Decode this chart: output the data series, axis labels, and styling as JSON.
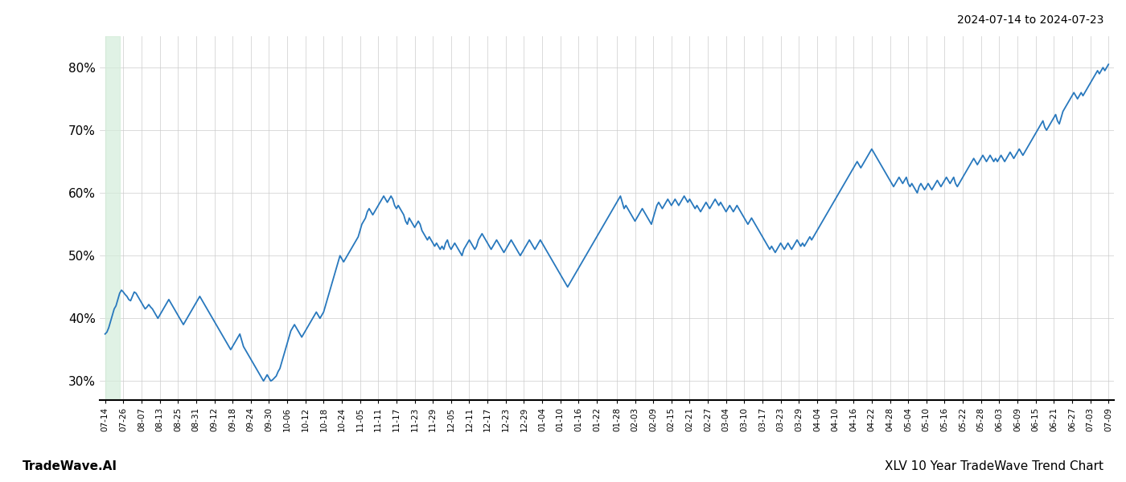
{
  "title_top_right": "2024-07-14 to 2024-07-23",
  "title_bottom_left": "TradeWave.AI",
  "title_bottom_right": "XLV 10 Year TradeWave Trend Chart",
  "line_color": "#2878bd",
  "line_width": 1.3,
  "highlight_color": "#d4edda",
  "highlight_alpha": 0.7,
  "highlight_xstart": 0,
  "highlight_xend": 8,
  "background_color": "#ffffff",
  "grid_color": "#cccccc",
  "ylim": [
    27,
    85
  ],
  "yticks": [
    30,
    40,
    50,
    60,
    70,
    80
  ],
  "x_labels": [
    "07-14",
    "07-26",
    "08-07",
    "08-13",
    "08-25",
    "08-31",
    "09-12",
    "09-18",
    "09-24",
    "09-30",
    "10-06",
    "10-12",
    "10-18",
    "10-24",
    "11-05",
    "11-11",
    "11-17",
    "11-23",
    "11-29",
    "12-05",
    "12-11",
    "12-17",
    "12-23",
    "12-29",
    "01-04",
    "01-10",
    "01-16",
    "01-22",
    "01-28",
    "02-03",
    "02-09",
    "02-15",
    "02-21",
    "02-27",
    "03-04",
    "03-10",
    "03-17",
    "03-23",
    "03-29",
    "04-04",
    "04-10",
    "04-16",
    "04-22",
    "04-28",
    "05-04",
    "05-10",
    "05-16",
    "05-22",
    "05-28",
    "06-03",
    "06-09",
    "06-15",
    "06-21",
    "06-27",
    "07-03",
    "07-09"
  ],
  "y_values": [
    37.5,
    37.8,
    38.5,
    39.5,
    40.5,
    41.5,
    42.0,
    43.0,
    44.0,
    44.5,
    44.2,
    43.8,
    43.5,
    43.0,
    42.8,
    43.5,
    44.2,
    44.0,
    43.5,
    43.0,
    42.5,
    42.0,
    41.5,
    41.8,
    42.2,
    41.8,
    41.5,
    41.0,
    40.5,
    40.0,
    40.5,
    41.0,
    41.5,
    42.0,
    42.5,
    43.0,
    42.5,
    42.0,
    41.5,
    41.0,
    40.5,
    40.0,
    39.5,
    39.0,
    39.5,
    40.0,
    40.5,
    41.0,
    41.5,
    42.0,
    42.5,
    43.0,
    43.5,
    43.0,
    42.5,
    42.0,
    41.5,
    41.0,
    40.5,
    40.0,
    39.5,
    39.0,
    38.5,
    38.0,
    37.5,
    37.0,
    36.5,
    36.0,
    35.5,
    35.0,
    35.5,
    36.0,
    36.5,
    37.0,
    37.5,
    36.5,
    35.5,
    35.0,
    34.5,
    34.0,
    33.5,
    33.0,
    32.5,
    32.0,
    31.5,
    31.0,
    30.5,
    30.0,
    30.5,
    31.0,
    30.5,
    30.0,
    30.2,
    30.5,
    30.8,
    31.5,
    32.0,
    33.0,
    34.0,
    35.0,
    36.0,
    37.0,
    38.0,
    38.5,
    39.0,
    38.5,
    38.0,
    37.5,
    37.0,
    37.5,
    38.0,
    38.5,
    39.0,
    39.5,
    40.0,
    40.5,
    41.0,
    40.5,
    40.0,
    40.5,
    41.0,
    42.0,
    43.0,
    44.0,
    45.0,
    46.0,
    47.0,
    48.0,
    49.0,
    50.0,
    49.5,
    49.0,
    49.5,
    50.0,
    50.5,
    51.0,
    51.5,
    52.0,
    52.5,
    53.0,
    54.0,
    55.0,
    55.5,
    56.0,
    57.0,
    57.5,
    57.0,
    56.5,
    57.0,
    57.5,
    58.0,
    58.5,
    59.0,
    59.5,
    59.0,
    58.5,
    59.0,
    59.5,
    59.0,
    58.0,
    57.5,
    58.0,
    57.5,
    57.0,
    56.5,
    55.5,
    55.0,
    56.0,
    55.5,
    55.0,
    54.5,
    55.0,
    55.5,
    55.0,
    54.0,
    53.5,
    53.0,
    52.5,
    53.0,
    52.5,
    52.0,
    51.5,
    52.0,
    51.5,
    51.0,
    51.5,
    51.0,
    52.0,
    52.5,
    51.5,
    51.0,
    51.5,
    52.0,
    51.5,
    51.0,
    50.5,
    50.0,
    51.0,
    51.5,
    52.0,
    52.5,
    52.0,
    51.5,
    51.0,
    51.5,
    52.5,
    53.0,
    53.5,
    53.0,
    52.5,
    52.0,
    51.5,
    51.0,
    51.5,
    52.0,
    52.5,
    52.0,
    51.5,
    51.0,
    50.5,
    51.0,
    51.5,
    52.0,
    52.5,
    52.0,
    51.5,
    51.0,
    50.5,
    50.0,
    50.5,
    51.0,
    51.5,
    52.0,
    52.5,
    52.0,
    51.5,
    51.0,
    51.5,
    52.0,
    52.5,
    52.0,
    51.5,
    51.0,
    50.5,
    50.0,
    49.5,
    49.0,
    48.5,
    48.0,
    47.5,
    47.0,
    46.5,
    46.0,
    45.5,
    45.0,
    45.5,
    46.0,
    46.5,
    47.0,
    47.5,
    48.0,
    48.5,
    49.0,
    49.5,
    50.0,
    50.5,
    51.0,
    51.5,
    52.0,
    52.5,
    53.0,
    53.5,
    54.0,
    54.5,
    55.0,
    55.5,
    56.0,
    56.5,
    57.0,
    57.5,
    58.0,
    58.5,
    59.0,
    59.5,
    58.5,
    57.5,
    58.0,
    57.5,
    57.0,
    56.5,
    56.0,
    55.5,
    56.0,
    56.5,
    57.0,
    57.5,
    57.0,
    56.5,
    56.0,
    55.5,
    55.0,
    56.0,
    57.0,
    58.0,
    58.5,
    58.0,
    57.5,
    58.0,
    58.5,
    59.0,
    58.5,
    58.0,
    58.5,
    59.0,
    58.5,
    58.0,
    58.5,
    59.0,
    59.5,
    59.0,
    58.5,
    59.0,
    58.5,
    58.0,
    57.5,
    58.0,
    57.5,
    57.0,
    57.5,
    58.0,
    58.5,
    58.0,
    57.5,
    58.0,
    58.5,
    59.0,
    58.5,
    58.0,
    58.5,
    58.0,
    57.5,
    57.0,
    57.5,
    58.0,
    57.5,
    57.0,
    57.5,
    58.0,
    57.5,
    57.0,
    56.5,
    56.0,
    55.5,
    55.0,
    55.5,
    56.0,
    55.5,
    55.0,
    54.5,
    54.0,
    53.5,
    53.0,
    52.5,
    52.0,
    51.5,
    51.0,
    51.5,
    51.0,
    50.5,
    51.0,
    51.5,
    52.0,
    51.5,
    51.0,
    51.5,
    52.0,
    51.5,
    51.0,
    51.5,
    52.0,
    52.5,
    52.0,
    51.5,
    52.0,
    51.5,
    52.0,
    52.5,
    53.0,
    52.5,
    53.0,
    53.5,
    54.0,
    54.5,
    55.0,
    55.5,
    56.0,
    56.5,
    57.0,
    57.5,
    58.0,
    58.5,
    59.0,
    59.5,
    60.0,
    60.5,
    61.0,
    61.5,
    62.0,
    62.5,
    63.0,
    63.5,
    64.0,
    64.5,
    65.0,
    64.5,
    64.0,
    64.5,
    65.0,
    65.5,
    66.0,
    66.5,
    67.0,
    66.5,
    66.0,
    65.5,
    65.0,
    64.5,
    64.0,
    63.5,
    63.0,
    62.5,
    62.0,
    61.5,
    61.0,
    61.5,
    62.0,
    62.5,
    62.0,
    61.5,
    62.0,
    62.5,
    61.5,
    61.0,
    61.5,
    61.0,
    60.5,
    60.0,
    61.0,
    61.5,
    61.0,
    60.5,
    61.0,
    61.5,
    61.0,
    60.5,
    61.0,
    61.5,
    62.0,
    61.5,
    61.0,
    61.5,
    62.0,
    62.5,
    62.0,
    61.5,
    62.0,
    62.5,
    61.5,
    61.0,
    61.5,
    62.0,
    62.5,
    63.0,
    63.5,
    64.0,
    64.5,
    65.0,
    65.5,
    65.0,
    64.5,
    65.0,
    65.5,
    66.0,
    65.5,
    65.0,
    65.5,
    66.0,
    65.5,
    65.0,
    65.5,
    65.0,
    65.5,
    66.0,
    65.5,
    65.0,
    65.5,
    66.0,
    66.5,
    66.0,
    65.5,
    66.0,
    66.5,
    67.0,
    66.5,
    66.0,
    66.5,
    67.0,
    67.5,
    68.0,
    68.5,
    69.0,
    69.5,
    70.0,
    70.5,
    71.0,
    71.5,
    70.5,
    70.0,
    70.5,
    71.0,
    71.5,
    72.0,
    72.5,
    71.5,
    71.0,
    72.0,
    73.0,
    73.5,
    74.0,
    74.5,
    75.0,
    75.5,
    76.0,
    75.5,
    75.0,
    75.5,
    76.0,
    75.5,
    76.0,
    76.5,
    77.0,
    77.5,
    78.0,
    78.5,
    79.0,
    79.5,
    79.0,
    79.5,
    80.0,
    79.5,
    80.0,
    80.5
  ]
}
